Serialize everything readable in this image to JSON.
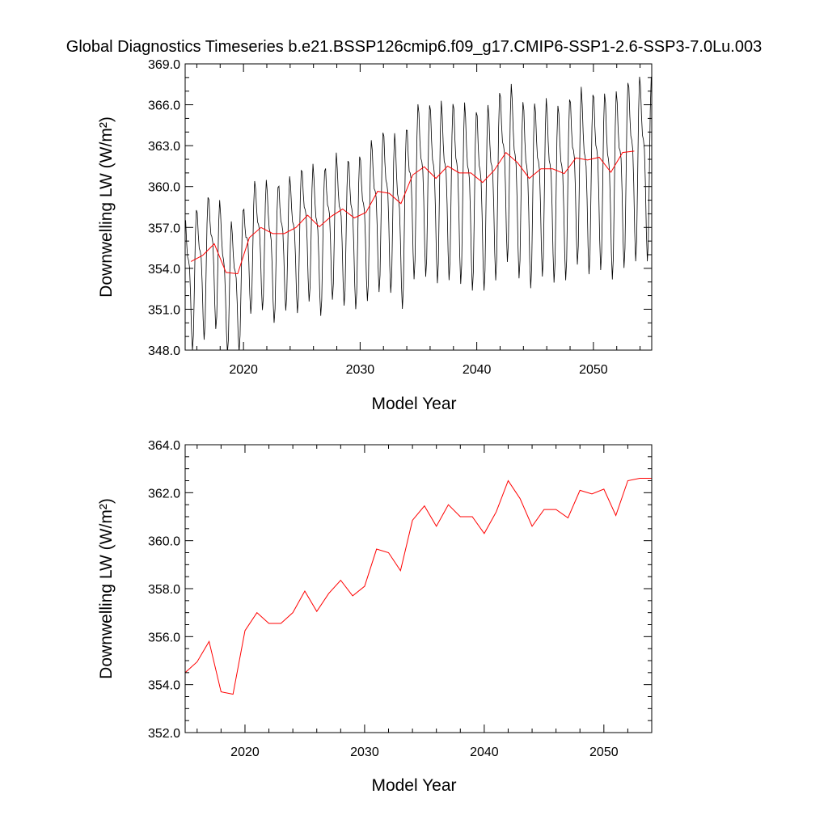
{
  "title": "Global Diagnostics Timeseries b.e21.BSSP126cmip6.f09_g17.CMIP6-SSP1-2.6-SSP3-7.0Lu.003",
  "colors": {
    "monthly": "#000000",
    "annual": "#ff0000"
  },
  "chart_data": [
    {
      "type": "line",
      "xlabel": "Model Year",
      "ylabel": "Downwelling LW (W/m²)",
      "xlim": [
        2015,
        2055
      ],
      "ylim": [
        348.0,
        369.0
      ],
      "xticks": [
        2020,
        2030,
        2040,
        2050
      ],
      "xtick_labels": [
        "2020",
        "2030",
        "2040",
        "2050"
      ],
      "yticks": [
        348,
        351,
        354,
        357,
        360,
        363,
        366,
        369
      ],
      "ytick_labels": [
        "348.0",
        "351.0",
        "354.0",
        "357.0",
        "360.0",
        "363.0",
        "366.0",
        "369.0"
      ],
      "series": [
        {
          "style": "monthly",
          "color": "#000000",
          "x_start": 2015.04,
          "x_step": 0.0833333,
          "amplitude": [
            4.5,
            4.5,
            4.5,
            4.3,
            4.2,
            4.2,
            4.3,
            4.4,
            4.3,
            4.5,
            4.6,
            4.6,
            4.7,
            4.8,
            4.9,
            5.0,
            5.2,
            5.3,
            5.5,
            5.6,
            5.7,
            5.8,
            5.8,
            5.9,
            5.9,
            5.9,
            5.9,
            5.9,
            5.9,
            5.9,
            5.8,
            5.8,
            5.7,
            5.8,
            5.8,
            5.9,
            5.9,
            6.0,
            6.0,
            6.0
          ],
          "note_phase": [
            -0.3,
            0.0,
            0.3,
            0.1,
            -0.2,
            0.2,
            0.0,
            -0.4,
            0.3,
            -0.1,
            0.2,
            -0.2,
            0.4,
            -0.3,
            0.1,
            0.3,
            -0.1,
            0.2,
            -0.3,
            0.1,
            0.0,
            0.3,
            -0.2,
            0.1,
            -0.3,
            0.2,
            0.0,
            0.3,
            -0.1,
            0.1,
            0.2,
            -0.2,
            0.0,
            0.3,
            -0.3,
            0.1,
            0.2,
            -0.1,
            0.3,
            0.0
          ]
        },
        {
          "style": "annual",
          "color": "#ff0000",
          "x": [
            2015.5,
            2016.5,
            2017.5,
            2018.5,
            2019.5,
            2020.5,
            2021.5,
            2022.5,
            2023.5,
            2024.5,
            2025.5,
            2026.5,
            2027.5,
            2028.5,
            2029.5,
            2030.5,
            2031.5,
            2032.5,
            2033.5,
            2034.5,
            2035.5,
            2036.5,
            2037.5,
            2038.5,
            2039.5,
            2040.5,
            2041.5,
            2042.5,
            2043.5,
            2044.5,
            2045.5,
            2046.5,
            2047.5,
            2048.5,
            2049.5,
            2050.5,
            2051.5,
            2052.5,
            2053.5
          ],
          "y": [
            354.5,
            354.95,
            355.8,
            353.7,
            353.6,
            356.25,
            357.0,
            356.55,
            356.55,
            357.0,
            357.9,
            357.05,
            357.8,
            358.35,
            357.7,
            358.1,
            359.65,
            359.5,
            358.75,
            360.85,
            361.45,
            360.6,
            361.5,
            361.0,
            361.0,
            360.3,
            361.2,
            362.5,
            361.75,
            360.6,
            361.3,
            361.3,
            360.95,
            362.1,
            361.95,
            362.15,
            361.05,
            362.5,
            362.6
          ]
        }
      ]
    },
    {
      "type": "line",
      "xlabel": "Model Year",
      "ylabel": "Downwelling LW (W/m²)",
      "xlim": [
        2015,
        2054
      ],
      "ylim": [
        352.0,
        364.0
      ],
      "xticks": [
        2020,
        2030,
        2040,
        2050
      ],
      "xtick_labels": [
        "2020",
        "2030",
        "2040",
        "2050"
      ],
      "yticks": [
        352,
        354,
        356,
        358,
        360,
        362,
        364
      ],
      "ytick_labels": [
        "352.0",
        "354.0",
        "356.0",
        "358.0",
        "360.0",
        "362.0",
        "364.0"
      ],
      "series": [
        {
          "style": "annual",
          "color": "#ff0000",
          "x": [
            2015.0,
            2016.0,
            2017.0,
            2018.0,
            2019.0,
            2020.0,
            2021.0,
            2022.0,
            2023.0,
            2024.0,
            2025.0,
            2026.0,
            2027.0,
            2028.0,
            2029.0,
            2030.0,
            2031.0,
            2032.0,
            2033.0,
            2034.0,
            2035.0,
            2036.0,
            2037.0,
            2038.0,
            2039.0,
            2040.0,
            2041.0,
            2042.0,
            2043.0,
            2044.0,
            2045.0,
            2046.0,
            2047.0,
            2048.0,
            2049.0,
            2050.0,
            2051.0,
            2052.0,
            2053.0,
            2054.0
          ],
          "y": [
            354.5,
            354.95,
            355.8,
            353.7,
            353.6,
            356.25,
            357.0,
            356.55,
            356.55,
            357.0,
            357.9,
            357.05,
            357.8,
            358.35,
            357.7,
            358.1,
            359.65,
            359.5,
            358.75,
            360.85,
            361.45,
            360.6,
            361.5,
            361.0,
            361.0,
            360.3,
            361.2,
            362.5,
            361.75,
            360.6,
            361.3,
            361.3,
            360.95,
            362.1,
            361.95,
            362.15,
            361.05,
            362.5,
            362.6,
            362.6
          ]
        }
      ]
    }
  ]
}
